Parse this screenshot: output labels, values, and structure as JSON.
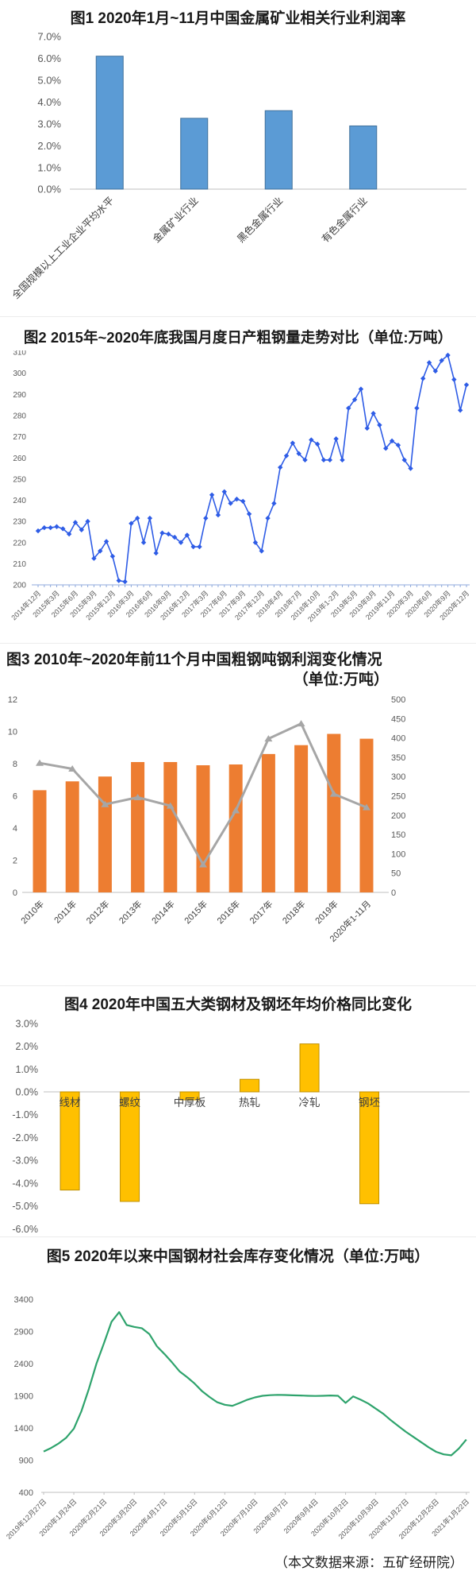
{
  "chart_data": [
    {
      "id": "fig1",
      "type": "bar",
      "title": "图1 2020年1月~11月中国金属矿业相关行业利润率",
      "categories": [
        "全国规模以上工业企业平均水平",
        "金属矿业行业",
        "黑色金属行业",
        "有色金属行业"
      ],
      "values": [
        6.1,
        3.25,
        3.6,
        2.9
      ],
      "y": {
        "min": 0,
        "max": 7,
        "step": 1,
        "fmt": "pct"
      },
      "color": "#5B9BD5",
      "edge": "#41719C"
    },
    {
      "id": "fig2",
      "type": "line",
      "title": "图2 2015年~2020年底我国月度日产粗钢量走势对比（单位:万吨）",
      "x_labels": [
        "2014年12月",
        "2015年3月",
        "2015年6月",
        "2015年9月",
        "2015年12月",
        "2016年3月",
        "2016年6月",
        "2016年9月",
        "2016年12月",
        "2017年3月",
        "2017年6月",
        "2017年9月",
        "2017年12月",
        "2018年4月",
        "2018年7月",
        "2018年10月",
        "2019年1-2月",
        "2019年5月",
        "2019年8月",
        "2019年11月",
        "2020年3月",
        "2020年6月",
        "2020年9月",
        "2020年12月"
      ],
      "label_every": 3,
      "values": [
        225.5,
        227,
        227,
        227.5,
        226.5,
        224,
        229.5,
        226,
        230,
        212.5,
        216,
        220.5,
        213.5,
        202,
        201.5,
        229,
        231.5,
        220,
        231.5,
        215,
        224.5,
        224,
        222.5,
        220,
        223.5,
        218,
        218,
        231.5,
        242.5,
        233,
        244,
        238.5,
        240.5,
        239.5,
        233.5,
        220,
        216,
        231.5,
        238.5,
        255.5,
        261,
        267,
        262,
        259,
        268.5,
        266.5,
        259,
        259,
        269,
        259,
        283.5,
        287.5,
        292.5,
        274,
        281,
        275.5,
        264.5,
        268,
        266,
        259,
        255,
        283.5,
        297.5,
        305,
        301,
        306,
        308.5,
        297,
        282.5,
        294.5
      ],
      "y": {
        "min": 200,
        "max": 310,
        "step": 10
      },
      "color": "#2E5CE6",
      "marker": "diamond"
    },
    {
      "id": "fig3",
      "type": "combo",
      "title": "图3 2010年~2020年前11个月中国粗钢吨钢利润变化情况",
      "subtitle": "（单位:万吨）",
      "categories": [
        "2010年",
        "2011年",
        "2012年",
        "2013年",
        "2014年",
        "2015年",
        "2016年",
        "2017年",
        "2018年",
        "2019年",
        "2020年1-11月"
      ],
      "bars": {
        "axis": "left",
        "values": [
          6.35,
          6.9,
          7.2,
          8.1,
          8.1,
          7.9,
          7.95,
          8.6,
          9.15,
          9.85,
          9.55
        ]
      },
      "line": {
        "axis": "right",
        "values": [
          335,
          320,
          228,
          246,
          224,
          72,
          212,
          398,
          437,
          255,
          220
        ]
      },
      "y": {
        "min": 0,
        "max": 12,
        "step": 2
      },
      "y_right": {
        "min": 0,
        "max": 500,
        "step": 50
      },
      "bar_color": "#ED7D31",
      "line_color": "#A6A6A6",
      "marker": "triangle"
    },
    {
      "id": "fig4",
      "type": "bar",
      "title": "图4 2020年中国五大类钢材及钢坯年均价格同比变化",
      "categories": [
        "线材",
        "螺纹",
        "中厚板",
        "热轧",
        "冷轧",
        "钢坯"
      ],
      "values": [
        -4.3,
        -4.8,
        -0.35,
        0.55,
        2.1,
        -4.9
      ],
      "y": {
        "min": -6,
        "max": 3,
        "step": 1,
        "fmt": "pct",
        "axis": 0
      },
      "color": "#FFC000",
      "edge": "#BF8F00"
    },
    {
      "id": "fig5",
      "type": "line",
      "title": "图5 2020年以来中国钢材社会库存变化情况（单位:万吨）",
      "x_labels": [
        "2019年12月27日",
        "2020年1月24日",
        "2020年2月21日",
        "2020年3月20日",
        "2020年4月17日",
        "2020年5月15日",
        "2020年6月12日",
        "2020年7月10日",
        "2020年8月7日",
        "2020年9月4日",
        "2020年10月2日",
        "2020年10月30日",
        "2020年11月27日",
        "2020年12月25日",
        "2021年1月22日"
      ],
      "label_every": 4,
      "values": [
        1035,
        1090,
        1160,
        1250,
        1390,
        1660,
        2010,
        2400,
        2720,
        3050,
        3200,
        3000,
        2970,
        2950,
        2860,
        2670,
        2550,
        2420,
        2280,
        2190,
        2090,
        1970,
        1880,
        1800,
        1760,
        1745,
        1790,
        1840,
        1875,
        1900,
        1910,
        1915,
        1912,
        1908,
        1905,
        1900,
        1898,
        1900,
        1905,
        1900,
        1790,
        1890,
        1840,
        1780,
        1700,
        1620,
        1520,
        1430,
        1340,
        1260,
        1180,
        1100,
        1030,
        990,
        975,
        1080,
        1220
      ],
      "y": {
        "min": 400,
        "max": 3400,
        "step": 500
      },
      "color": "#2EA36C",
      "marker": "none"
    }
  ],
  "footer": {
    "source": "（本文数据来源：五矿经研院）"
  }
}
